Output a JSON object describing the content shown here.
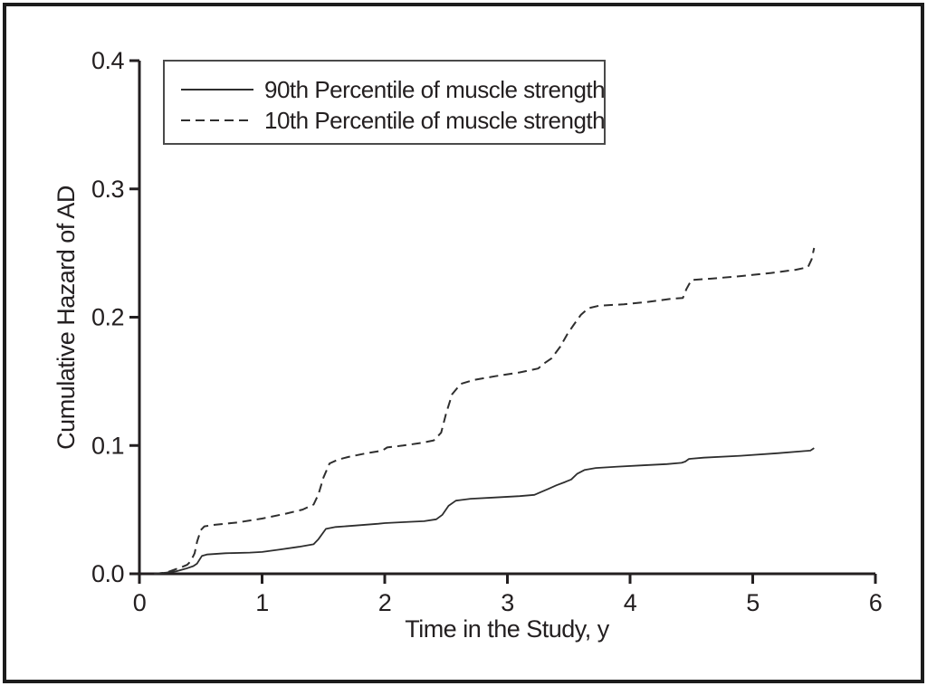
{
  "chart_data": {
    "type": "line",
    "title": "",
    "xlabel": "Time in the Study, y",
    "ylabel": "Cumulative Hazard of AD",
    "xlim": [
      0,
      6
    ],
    "ylim": [
      0,
      0.4
    ],
    "xticks": [
      0,
      1,
      2,
      3,
      4,
      5,
      6
    ],
    "xtick_labels": [
      "0",
      "1",
      "2",
      "3",
      "4",
      "5",
      "6"
    ],
    "yticks": [
      0.0,
      0.1,
      0.2,
      0.3,
      0.4
    ],
    "ytick_labels": [
      "0.0",
      "0.1",
      "0.2",
      "0.3",
      "0.4"
    ],
    "grid": false,
    "legend_position": "top-left-inside",
    "axis_color": "#231f20",
    "line_color": "#2e2e2e",
    "legend_border_color": "#4a4a4a",
    "series": [
      {
        "name": "90th Percentile of muscle strength",
        "style": "solid",
        "points": [
          [
            0.12,
            0.0
          ],
          [
            0.22,
            0.001
          ],
          [
            0.3,
            0.002
          ],
          [
            0.38,
            0.004
          ],
          [
            0.44,
            0.006
          ],
          [
            0.47,
            0.008
          ],
          [
            0.49,
            0.011
          ],
          [
            0.51,
            0.014
          ],
          [
            0.55,
            0.015
          ],
          [
            0.7,
            0.016
          ],
          [
            0.9,
            0.0165
          ],
          [
            1.0,
            0.017
          ],
          [
            1.15,
            0.019
          ],
          [
            1.3,
            0.021
          ],
          [
            1.42,
            0.023
          ],
          [
            1.46,
            0.027
          ],
          [
            1.52,
            0.035
          ],
          [
            1.6,
            0.0365
          ],
          [
            1.75,
            0.0375
          ],
          [
            1.95,
            0.039
          ],
          [
            2.0,
            0.0395
          ],
          [
            2.2,
            0.0405
          ],
          [
            2.32,
            0.041
          ],
          [
            2.42,
            0.0425
          ],
          [
            2.47,
            0.046
          ],
          [
            2.52,
            0.053
          ],
          [
            2.58,
            0.057
          ],
          [
            2.7,
            0.0585
          ],
          [
            2.9,
            0.0595
          ],
          [
            3.1,
            0.0605
          ],
          [
            3.22,
            0.0615
          ],
          [
            3.28,
            0.064
          ],
          [
            3.33,
            0.066
          ],
          [
            3.4,
            0.069
          ],
          [
            3.47,
            0.0715
          ],
          [
            3.52,
            0.0735
          ],
          [
            3.57,
            0.078
          ],
          [
            3.63,
            0.081
          ],
          [
            3.72,
            0.0825
          ],
          [
            3.9,
            0.0835
          ],
          [
            4.1,
            0.0845
          ],
          [
            4.3,
            0.0855
          ],
          [
            4.42,
            0.0865
          ],
          [
            4.45,
            0.0875
          ],
          [
            4.48,
            0.0895
          ],
          [
            4.6,
            0.0905
          ],
          [
            4.9,
            0.092
          ],
          [
            5.2,
            0.094
          ],
          [
            5.4,
            0.0955
          ],
          [
            5.47,
            0.096
          ],
          [
            5.5,
            0.098
          ]
        ]
      },
      {
        "name": "10th Percentile of muscle strength",
        "style": "dashed",
        "points": [
          [
            0.12,
            0.0
          ],
          [
            0.22,
            0.001
          ],
          [
            0.28,
            0.003
          ],
          [
            0.34,
            0.005
          ],
          [
            0.39,
            0.007
          ],
          [
            0.42,
            0.01
          ],
          [
            0.45,
            0.016
          ],
          [
            0.47,
            0.025
          ],
          [
            0.5,
            0.034
          ],
          [
            0.53,
            0.037
          ],
          [
            0.6,
            0.038
          ],
          [
            0.8,
            0.04
          ],
          [
            1.0,
            0.043
          ],
          [
            1.2,
            0.047
          ],
          [
            1.33,
            0.05
          ],
          [
            1.42,
            0.054
          ],
          [
            1.46,
            0.062
          ],
          [
            1.5,
            0.075
          ],
          [
            1.55,
            0.086
          ],
          [
            1.62,
            0.089
          ],
          [
            1.7,
            0.091
          ],
          [
            1.85,
            0.094
          ],
          [
            1.98,
            0.096
          ],
          [
            2.02,
            0.0985
          ],
          [
            2.15,
            0.1
          ],
          [
            2.3,
            0.102
          ],
          [
            2.4,
            0.104
          ],
          [
            2.46,
            0.11
          ],
          [
            2.5,
            0.125
          ],
          [
            2.55,
            0.14
          ],
          [
            2.62,
            0.148
          ],
          [
            2.72,
            0.151
          ],
          [
            2.9,
            0.154
          ],
          [
            3.1,
            0.157
          ],
          [
            3.25,
            0.16
          ],
          [
            3.3,
            0.164
          ],
          [
            3.36,
            0.168
          ],
          [
            3.43,
            0.177
          ],
          [
            3.49,
            0.187
          ],
          [
            3.54,
            0.194
          ],
          [
            3.6,
            0.202
          ],
          [
            3.66,
            0.207
          ],
          [
            3.75,
            0.209
          ],
          [
            3.95,
            0.21
          ],
          [
            4.15,
            0.212
          ],
          [
            4.35,
            0.2145
          ],
          [
            4.43,
            0.215
          ],
          [
            4.46,
            0.222
          ],
          [
            4.5,
            0.229
          ],
          [
            4.65,
            0.23
          ],
          [
            4.9,
            0.232
          ],
          [
            5.15,
            0.2345
          ],
          [
            5.35,
            0.237
          ],
          [
            5.45,
            0.239
          ],
          [
            5.48,
            0.245
          ],
          [
            5.5,
            0.254
          ]
        ]
      }
    ]
  }
}
